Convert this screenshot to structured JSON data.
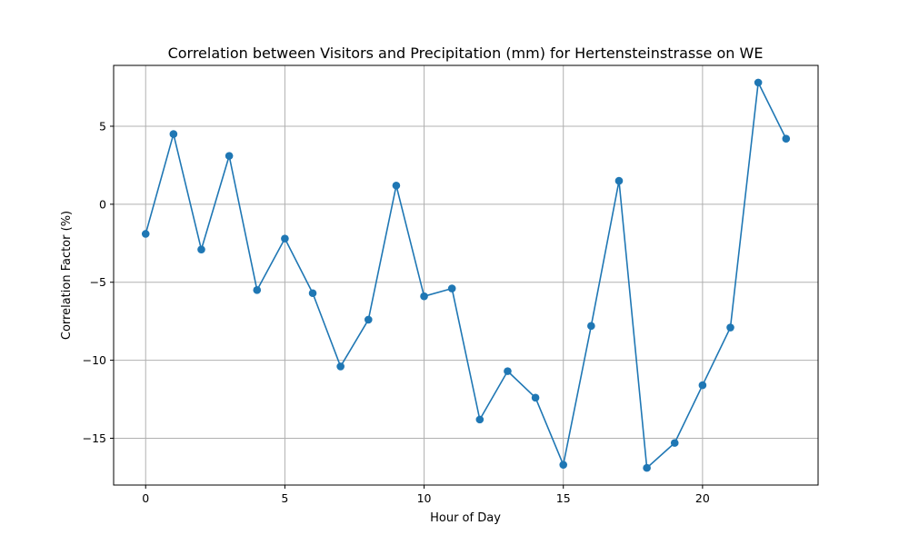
{
  "chart_data": {
    "type": "line",
    "title": "Correlation between Visitors and Precipitation (mm) for Hertensteinstrasse on WE",
    "xlabel": "Hour of Day",
    "ylabel": "Correlation Factor (%)",
    "xlim": [
      -1.15,
      24.15
    ],
    "ylim": [
      -18.0,
      8.9
    ],
    "xticks": [
      0,
      5,
      10,
      15,
      20
    ],
    "yticks": [
      -15,
      -10,
      -5,
      0,
      5
    ],
    "grid": true,
    "marker": "circle",
    "series": [
      {
        "color": "#1f77b4",
        "x": [
          0,
          1,
          2,
          3,
          4,
          5,
          6,
          7,
          8,
          9,
          10,
          11,
          12,
          13,
          14,
          15,
          16,
          17,
          18,
          19,
          20,
          21,
          22,
          23
        ],
        "values": [
          -1.9,
          4.5,
          -2.9,
          3.1,
          -5.5,
          -2.2,
          -5.7,
          -10.4,
          -7.4,
          1.2,
          -5.9,
          -5.4,
          -13.8,
          -10.7,
          -12.4,
          -16.7,
          -7.8,
          1.5,
          -16.9,
          -15.3,
          -11.6,
          -7.9,
          7.8,
          4.2
        ]
      }
    ]
  }
}
